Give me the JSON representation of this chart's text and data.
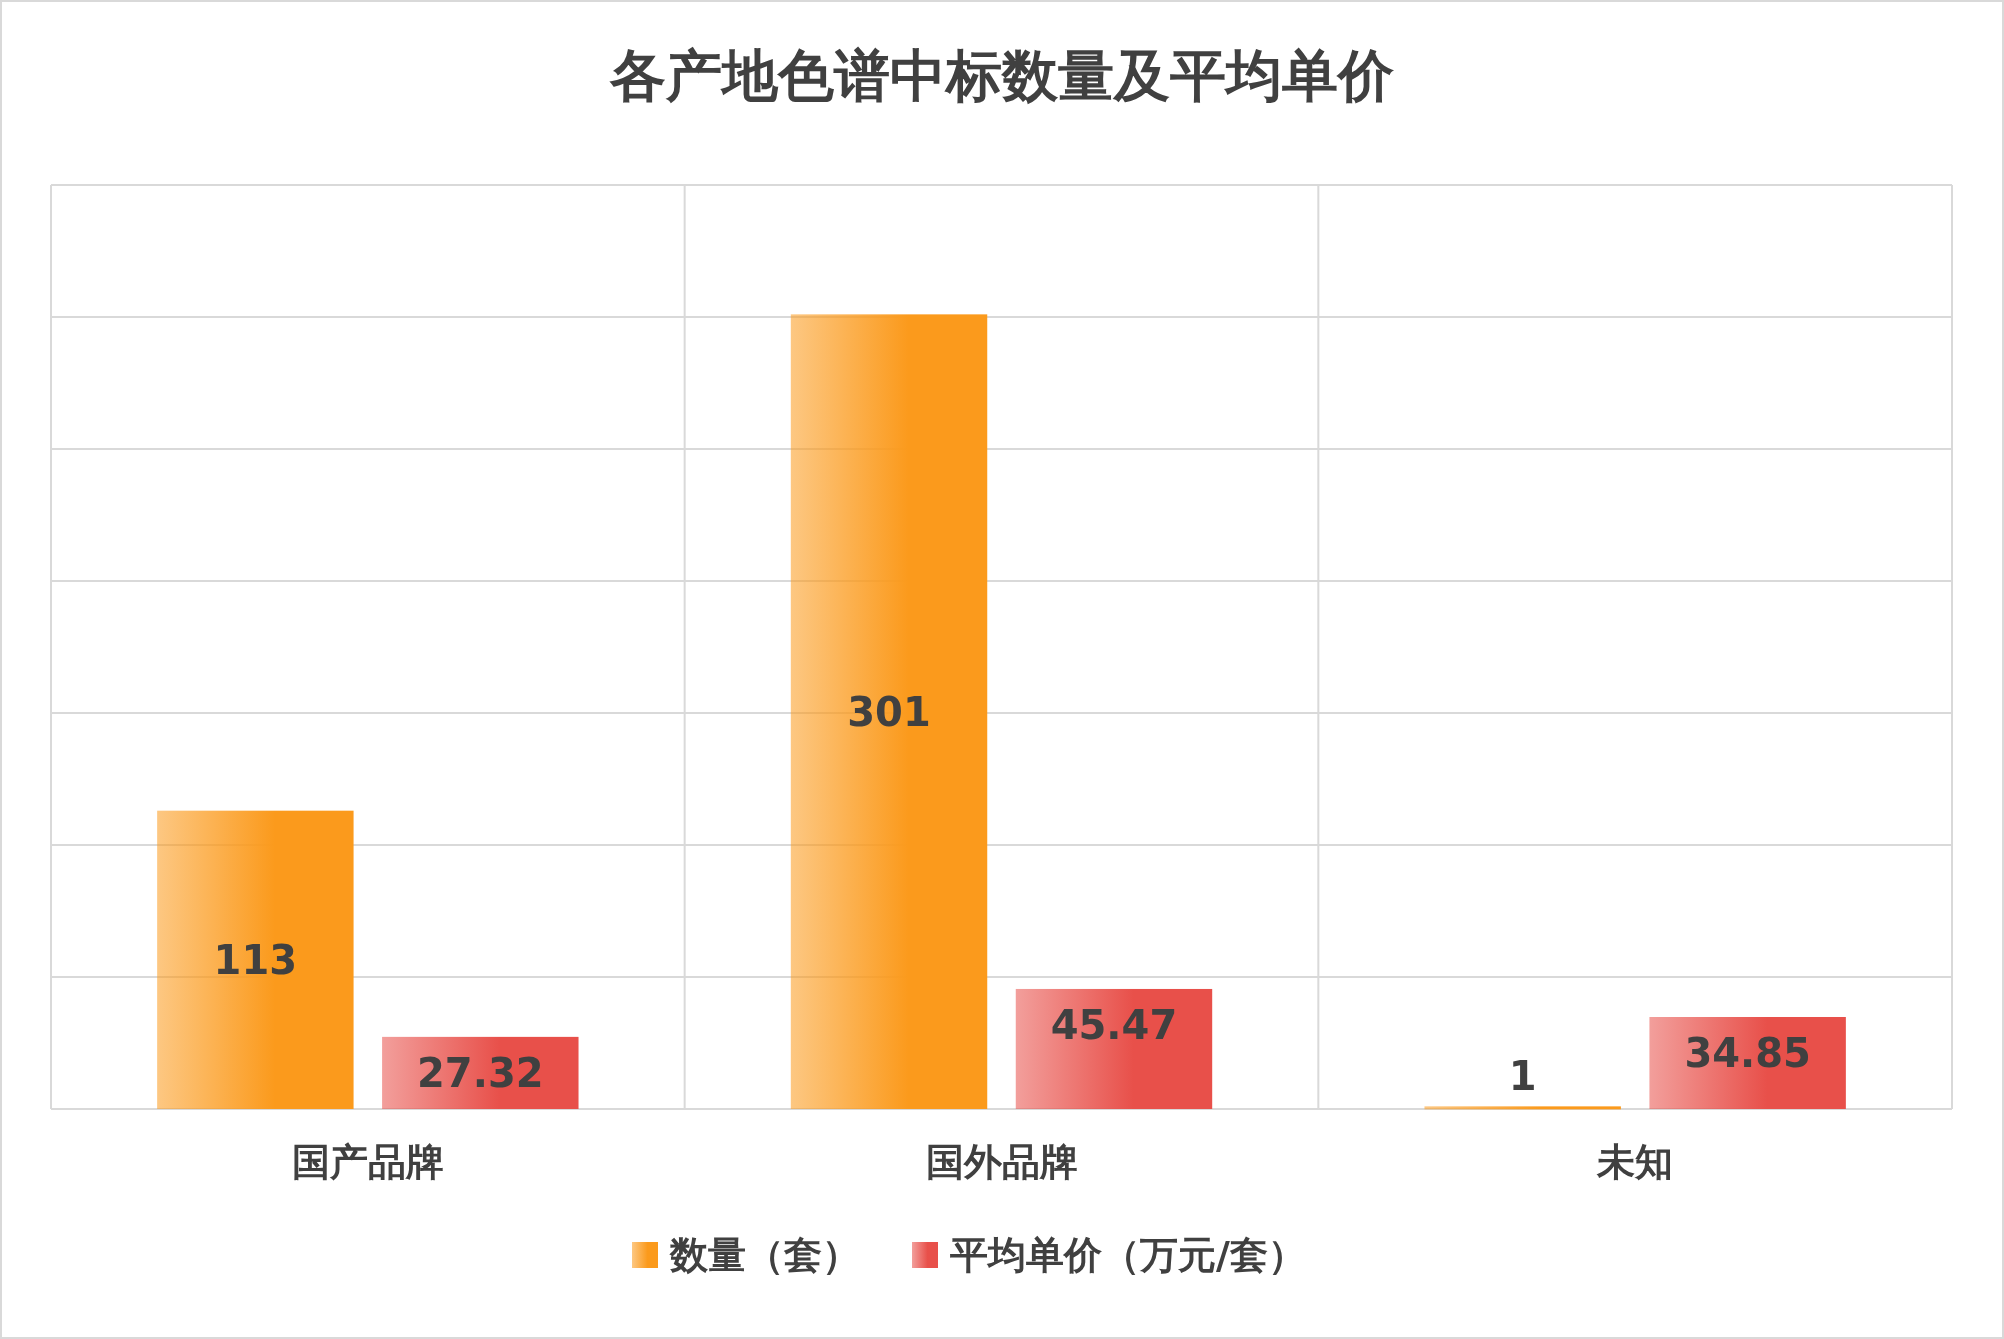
{
  "chart_data": {
    "type": "bar",
    "title": "各产地色谱中标数量及平均单价",
    "categories": [
      "国产品牌",
      "国外品牌",
      "未知"
    ],
    "series": [
      {
        "name": "数量（套）",
        "color": "#fb9a1c",
        "values": [
          113,
          301,
          1
        ]
      },
      {
        "name": "平均单价（万元/套）",
        "color": "#e8504a",
        "values": [
          27.32,
          45.47,
          34.85
        ]
      }
    ],
    "ylim": [
      0,
      350
    ],
    "yticks": [
      {
        "value": 0,
        "label": null
      },
      {
        "value": 50,
        "label": null
      },
      {
        "value": 100,
        "label": null
      },
      {
        "value": 150,
        "label": null
      },
      {
        "value": 200,
        "label": null
      },
      {
        "value": 250,
        "label": null
      },
      {
        "value": 300,
        "label": null
      },
      {
        "value": 350,
        "label": null
      }
    ],
    "tick_labels": "x",
    "grid": true,
    "legend": "bottom",
    "data_labels": true
  }
}
